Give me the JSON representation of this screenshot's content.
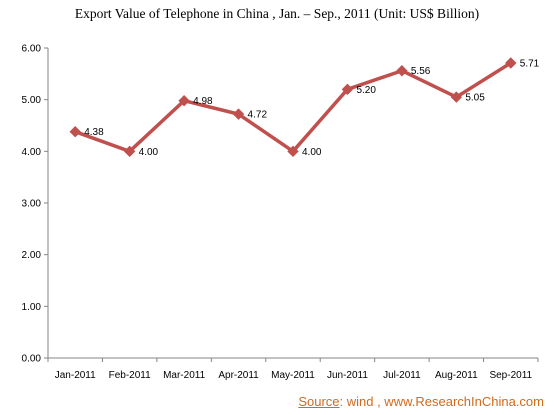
{
  "chart_data": {
    "type": "line",
    "title": "Export Value of Telephone in China , Jan. – Sep., 2011  (Unit: US$ Billion)",
    "categories": [
      "Jan-2011",
      "Feb-2011",
      "Mar-2011",
      "Apr-2011",
      "May-2011",
      "Jun-2011",
      "Jul-2011",
      "Aug-2011",
      "Sep-2011"
    ],
    "series": [
      {
        "values": [
          4.38,
          4.0,
          4.98,
          4.72,
          4.0,
          5.2,
          5.56,
          5.05,
          5.71
        ],
        "labels": [
          "4.38",
          "4.00",
          "4.98",
          "4.72",
          "4.00",
          "5.20",
          "5.56",
          "5.05",
          "5.71"
        ],
        "color": "#c0504d"
      }
    ],
    "ylim": [
      0,
      6
    ],
    "yticks": [
      0,
      1,
      2,
      3,
      4,
      5,
      6
    ],
    "ytick_labels": [
      "0.00",
      "1.00",
      "2.00",
      "3.00",
      "4.00",
      "5.00",
      "6.00"
    ],
    "grid": false,
    "legend": "none"
  },
  "source": {
    "label": "Source",
    "text": ": wind  , www.ResearchInChina.com"
  }
}
